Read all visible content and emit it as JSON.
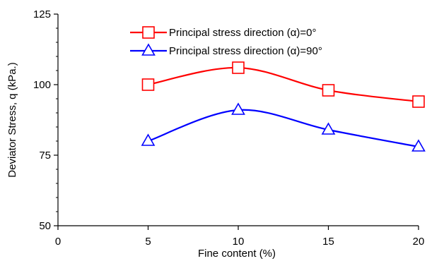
{
  "chart_data": {
    "type": "line",
    "x": [
      5,
      10,
      15,
      20
    ],
    "series": [
      {
        "name": "Principal stress direction (α)=0°",
        "values": [
          100,
          106,
          98,
          94
        ],
        "color": "#ff0000",
        "marker": "square"
      },
      {
        "name": "Principal stress direction (α)=90°",
        "values": [
          80,
          91,
          84,
          78
        ],
        "color": "#0000ff",
        "marker": "triangle"
      }
    ],
    "title": "",
    "xlabel": "Fine content  (%)",
    "ylabel": "Deviator Stress, q (kPa.)",
    "xlim": [
      0,
      20
    ],
    "ylim": [
      50,
      125
    ],
    "xticks": [
      "0",
      "5",
      "10",
      "15",
      "20"
    ],
    "yticks": [
      "50",
      "75",
      "100",
      "125"
    ],
    "grid": false,
    "smooth": true,
    "legend_position": "top-center"
  }
}
